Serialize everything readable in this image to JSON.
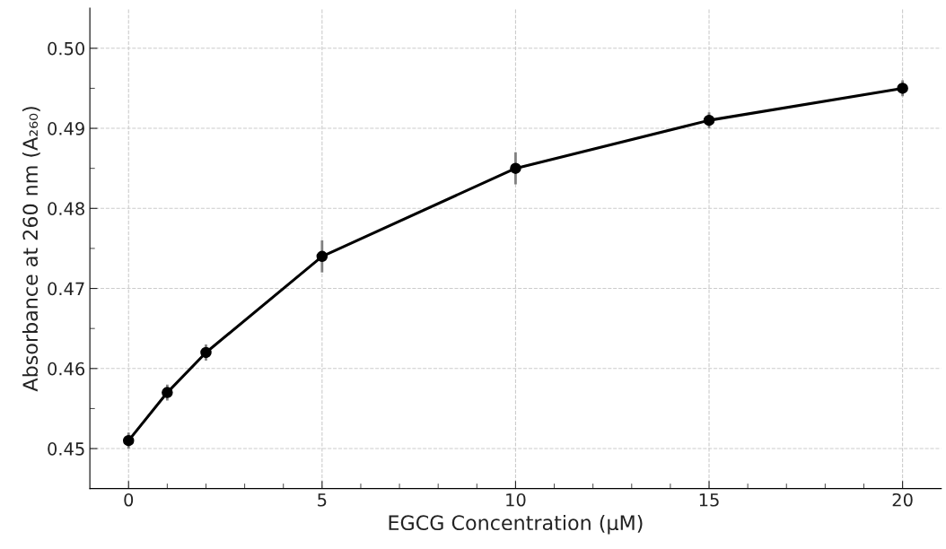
{
  "chart_data": {
    "type": "line",
    "xlabel": "EGCG Concentration (μM)",
    "ylabel": "Absorbance at 260 nm (A₂₆₀)",
    "x": [
      0,
      1,
      2,
      5,
      10,
      15,
      20
    ],
    "series": [
      {
        "color": "#000000",
        "values": [
          0.451,
          0.457,
          0.462,
          0.474,
          0.485,
          0.491,
          0.495
        ],
        "errors": [
          0.001,
          0.001,
          0.001,
          0.002,
          0.002,
          0.001,
          0.001
        ]
      }
    ],
    "xlim": [
      -1,
      21
    ],
    "xticks": [
      0,
      {
        "value": 1,
        "label": null
      },
      {
        "value": 2,
        "label": null
      },
      {
        "value": 3,
        "label": null
      },
      {
        "value": 4,
        "label": null
      },
      5,
      {
        "value": 6,
        "label": null
      },
      {
        "value": 7,
        "label": null
      },
      {
        "value": 8,
        "label": null
      },
      {
        "value": 9,
        "label": null
      },
      10,
      {
        "value": 11,
        "label": null
      },
      {
        "value": 12,
        "label": null
      },
      {
        "value": 13,
        "label": null
      },
      {
        "value": 14,
        "label": null
      },
      15,
      {
        "value": 16,
        "label": null
      },
      {
        "value": 17,
        "label": null
      },
      {
        "value": 18,
        "label": null
      },
      {
        "value": 19,
        "label": null
      },
      20
    ],
    "ylim": [
      0.445,
      0.505
    ],
    "yticks": [
      {
        "value": 0.45,
        "label": "0.45"
      },
      {
        "value": 0.455,
        "label": null
      },
      {
        "value": 0.46,
        "label": "0.46"
      },
      {
        "value": 0.465,
        "label": null
      },
      {
        "value": 0.47,
        "label": "0.47"
      },
      {
        "value": 0.475,
        "label": null
      },
      {
        "value": 0.48,
        "label": "0.48"
      },
      {
        "value": 0.485,
        "label": null
      },
      {
        "value": 0.49,
        "label": "0.49"
      },
      {
        "value": 0.495,
        "label": null
      },
      {
        "value": 0.5,
        "label": "0.50"
      }
    ],
    "grid": true,
    "marker": "circle",
    "line_style": "solid"
  }
}
